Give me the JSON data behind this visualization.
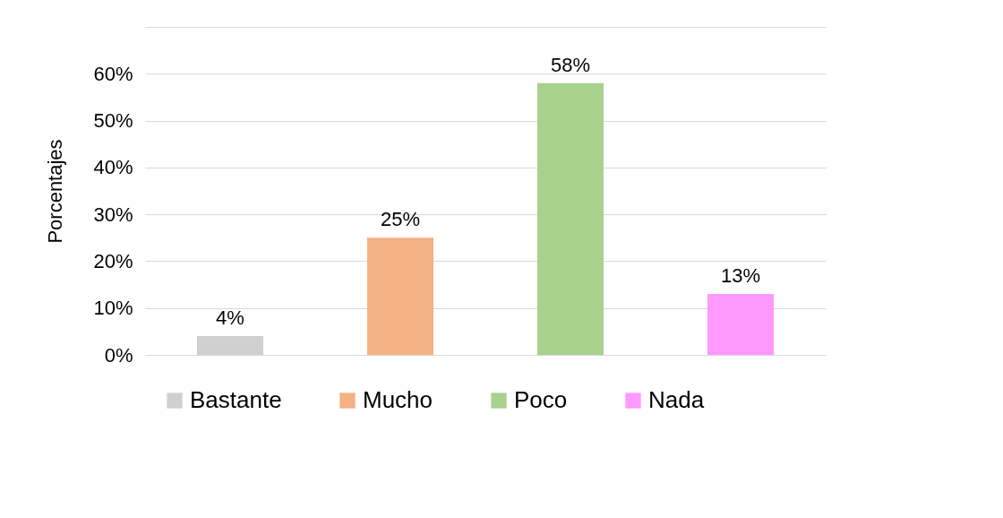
{
  "chart_data": {
    "type": "bar",
    "ylabel": "Porcentajes",
    "categories": [
      null,
      null,
      null,
      null
    ],
    "series": [
      {
        "name": "Bastante",
        "color": "#d0d0d0",
        "values": [
          4,
          null,
          null,
          null
        ],
        "value_labels": [
          "4%",
          null,
          null,
          null
        ]
      },
      {
        "name": "Mucho",
        "color": "#f4b183",
        "values": [
          null,
          25,
          null,
          null
        ],
        "value_labels": [
          null,
          "25%",
          null,
          null
        ]
      },
      {
        "name": "Poco",
        "color": "#a9d18e",
        "values": [
          null,
          null,
          58,
          null
        ],
        "value_labels": [
          null,
          null,
          "58%",
          null
        ]
      },
      {
        "name": "Nada",
        "color": "#ff99ff",
        "values": [
          null,
          null,
          null,
          13
        ],
        "value_labels": [
          null,
          null,
          null,
          "13%"
        ]
      }
    ],
    "ylim": [
      0,
      70
    ],
    "yticks": [
      {
        "value": 0,
        "label": "0%"
      },
      {
        "value": 10,
        "label": "10%"
      },
      {
        "value": 20,
        "label": "20%"
      },
      {
        "value": 30,
        "label": "30%"
      },
      {
        "value": 40,
        "label": "40%"
      },
      {
        "value": 50,
        "label": "50%"
      },
      {
        "value": 60,
        "label": "60%"
      },
      {
        "value": 70,
        "label": null
      }
    ],
    "grid": "y",
    "legend": "bottom",
    "tick_labels": "y"
  }
}
